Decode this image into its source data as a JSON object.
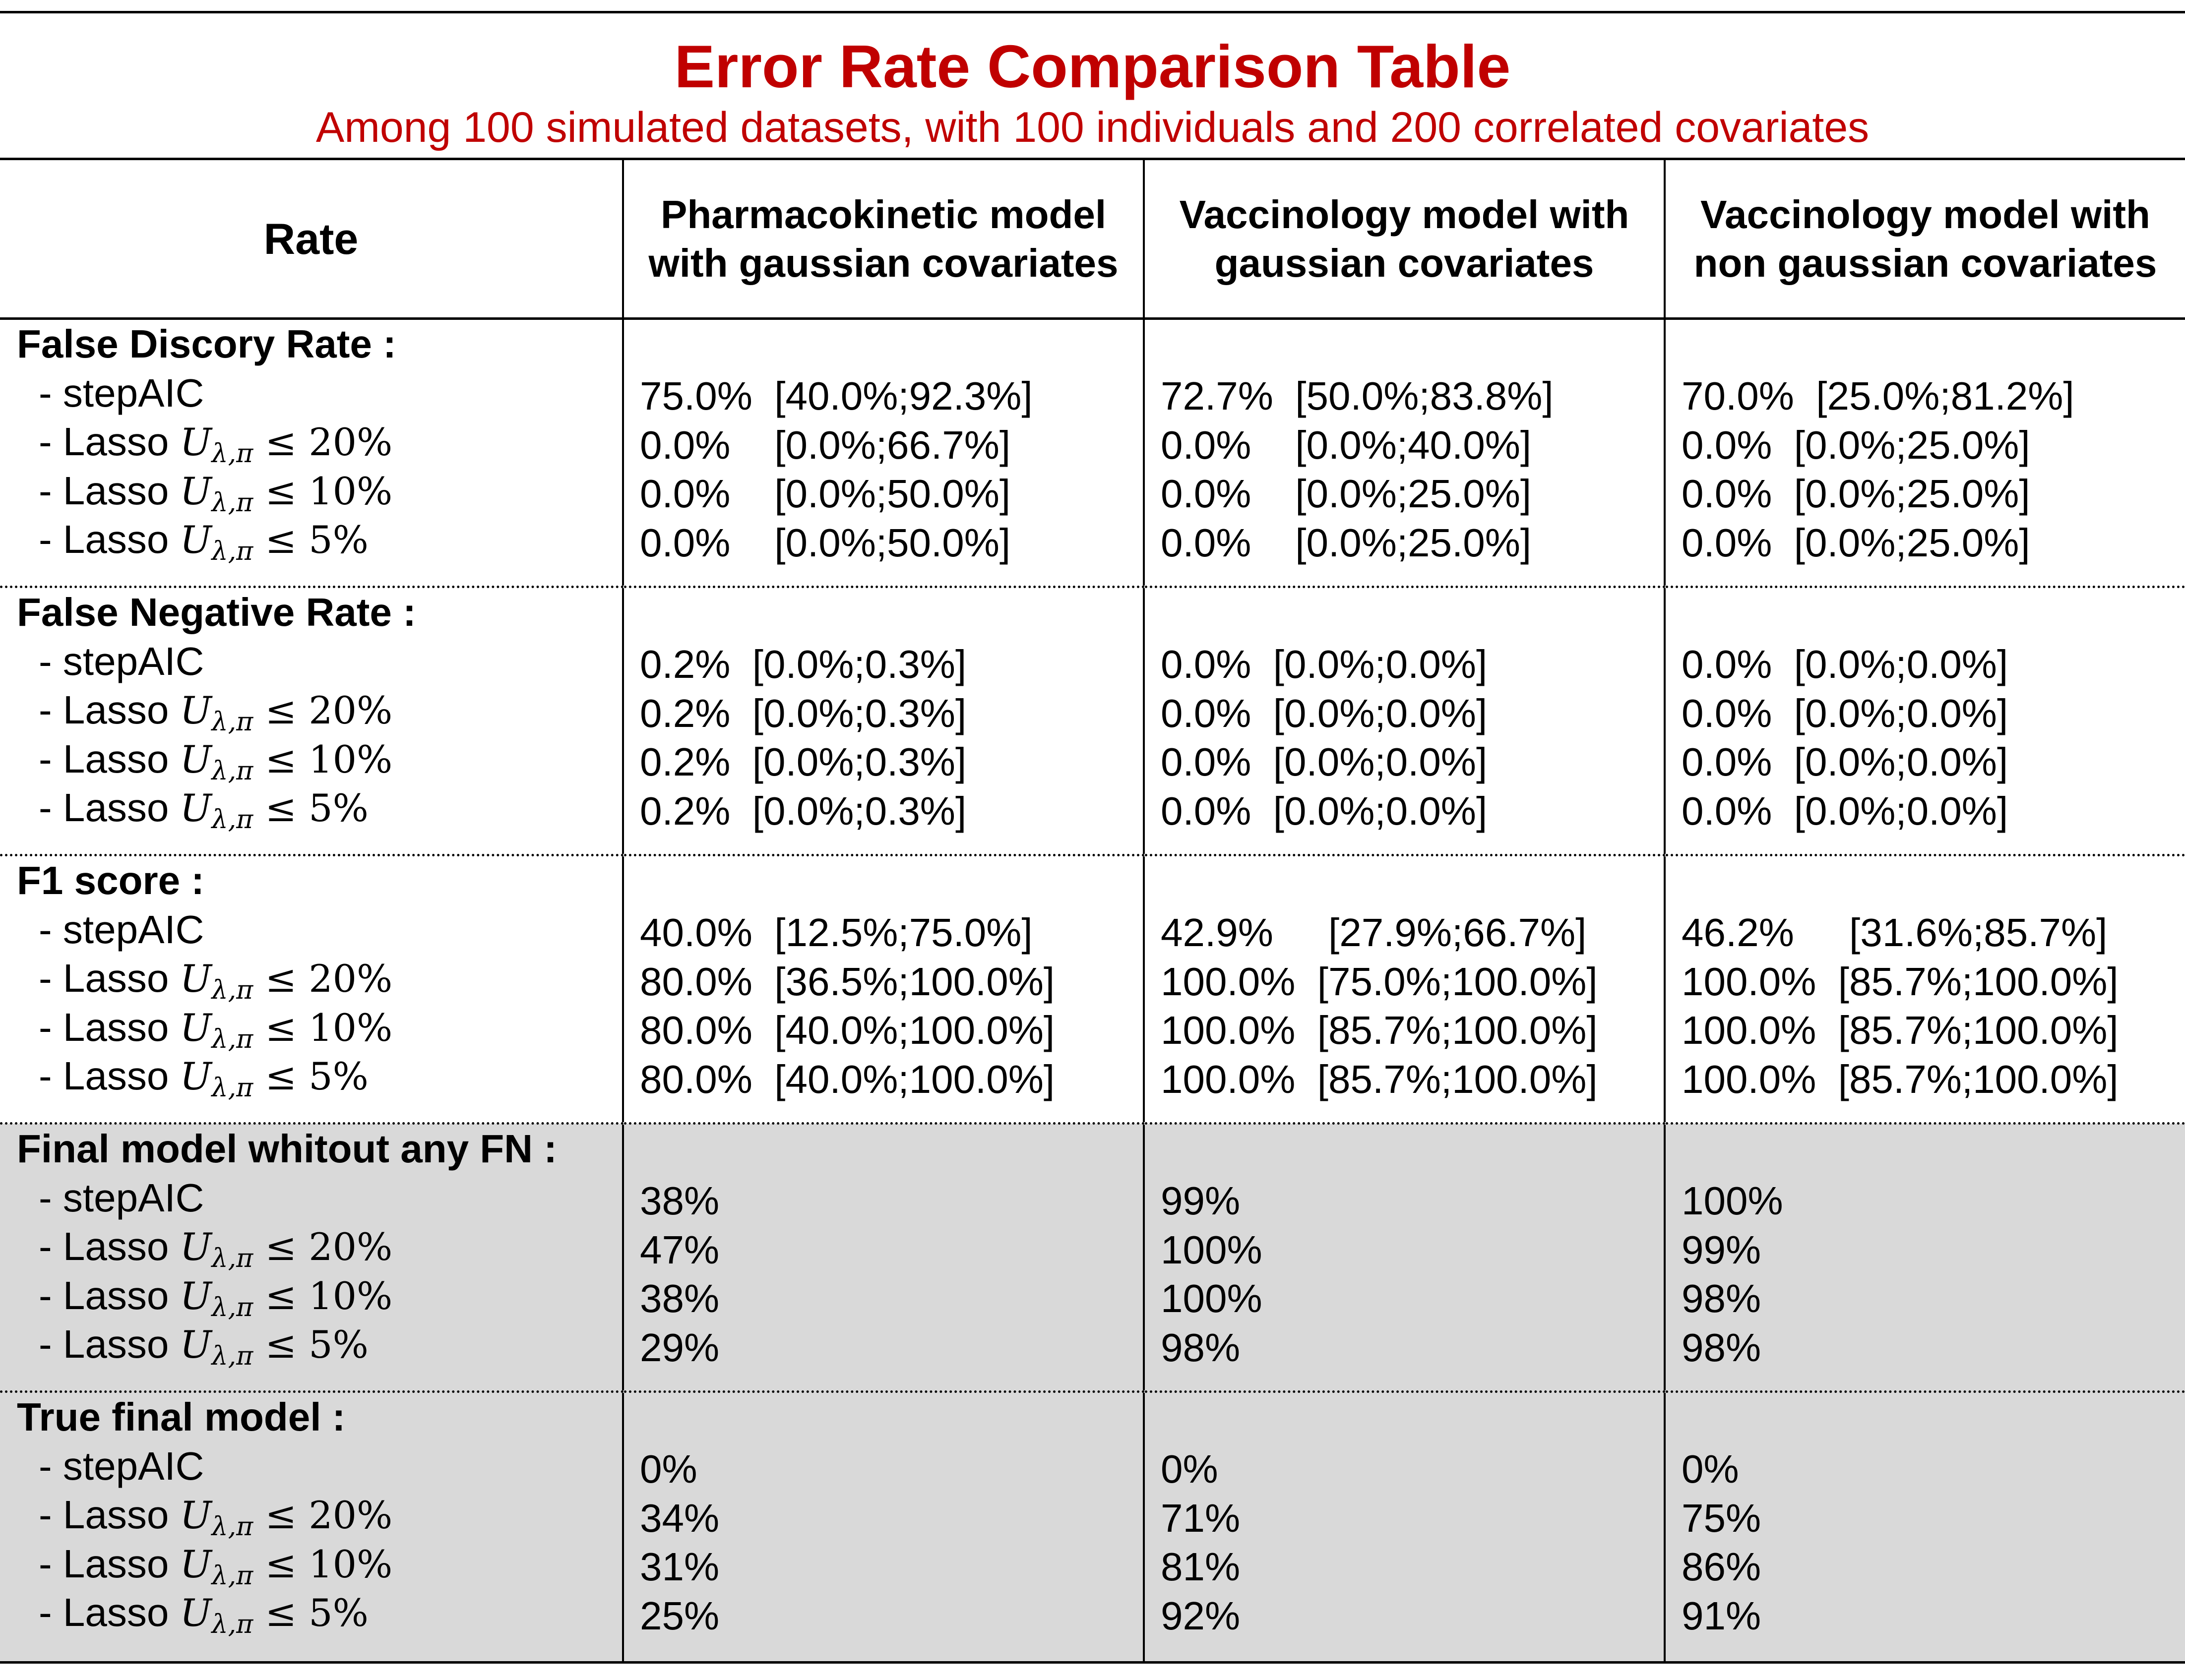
{
  "title": "Error Rate Comparison Table",
  "subtitle": "Among 100 simulated datasets, with 100 individuals and 200 correlated covariates",
  "colors": {
    "title": "#c00000",
    "shaded_row_background": "#d9d9d9"
  },
  "columns": [
    "Rate",
    "Pharmacokinetic model with gaussian covariates",
    "Vaccinology model with gaussian covariates",
    "Vaccinology model with non gaussian covariates"
  ],
  "methods": [
    "- stepAIC",
    "- Lasso Uλ,π ≤ 20%",
    "- Lasso Uλ,π ≤ 10%",
    "- Lasso Uλ,π ≤ 5%"
  ],
  "sections": [
    {
      "title": "False Discory Rate :",
      "shaded": false,
      "values": [
        [
          "75.0%  [40.0%;92.3%]",
          "0.0%    [0.0%;66.7%]",
          "0.0%    [0.0%;50.0%]",
          "0.0%    [0.0%;50.0%]"
        ],
        [
          "72.7%  [50.0%;83.8%]",
          "0.0%    [0.0%;40.0%]",
          "0.0%    [0.0%;25.0%]",
          "0.0%    [0.0%;25.0%]"
        ],
        [
          "70.0%  [25.0%;81.2%]",
          "0.0%  [0.0%;25.0%]",
          "0.0%  [0.0%;25.0%]",
          "0.0%  [0.0%;25.0%]"
        ]
      ]
    },
    {
      "title": "False Negative Rate :",
      "shaded": false,
      "values": [
        [
          "0.2%  [0.0%;0.3%]",
          "0.2%  [0.0%;0.3%]",
          "0.2%  [0.0%;0.3%]",
          "0.2%  [0.0%;0.3%]"
        ],
        [
          "0.0%  [0.0%;0.0%]",
          "0.0%  [0.0%;0.0%]",
          "0.0%  [0.0%;0.0%]",
          "0.0%  [0.0%;0.0%]"
        ],
        [
          "0.0%  [0.0%;0.0%]",
          "0.0%  [0.0%;0.0%]",
          "0.0%  [0.0%;0.0%]",
          "0.0%  [0.0%;0.0%]"
        ]
      ]
    },
    {
      "title": "F1 score :",
      "shaded": false,
      "values": [
        [
          "40.0%  [12.5%;75.0%]",
          "80.0%  [36.5%;100.0%]",
          "80.0%  [40.0%;100.0%]",
          "80.0%  [40.0%;100.0%]"
        ],
        [
          "42.9%     [27.9%;66.7%]",
          "100.0%  [75.0%;100.0%]",
          "100.0%  [85.7%;100.0%]",
          "100.0%  [85.7%;100.0%]"
        ],
        [
          "46.2%     [31.6%;85.7%]",
          "100.0%  [85.7%;100.0%]",
          "100.0%  [85.7%;100.0%]",
          "100.0%  [85.7%;100.0%]"
        ]
      ]
    },
    {
      "title": "Final model whitout any FN :",
      "shaded": true,
      "values": [
        [
          "38%",
          "47%",
          "38%",
          "29%"
        ],
        [
          "99%",
          "100%",
          "100%",
          "98%"
        ],
        [
          "100%",
          "99%",
          "98%",
          "98%"
        ]
      ]
    },
    {
      "title": "True final model :",
      "shaded": true,
      "values": [
        [
          "0%",
          "34%",
          "31%",
          "25%"
        ],
        [
          "0%",
          "71%",
          "81%",
          "92%"
        ],
        [
          "0%",
          "75%",
          "86%",
          "91%"
        ]
      ]
    }
  ]
}
